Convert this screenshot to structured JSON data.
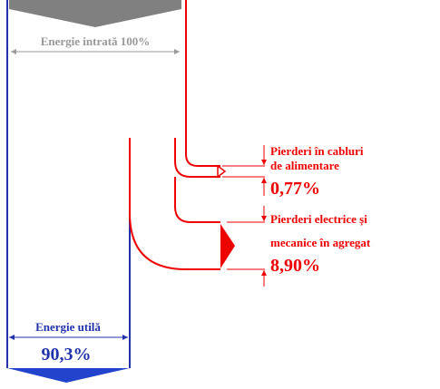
{
  "input": {
    "label": "Energie intrată 100%"
  },
  "losses": [
    {
      "label_lines": [
        "Pierderi în cabluri",
        "de alimentare"
      ],
      "value": "0,77%"
    },
    {
      "label_lines": [
        "Pierderi electrice și",
        "mecanice în agregat"
      ],
      "value": "8,90%"
    }
  ],
  "output": {
    "label": "Energie utilă",
    "value": "90,3%"
  }
}
